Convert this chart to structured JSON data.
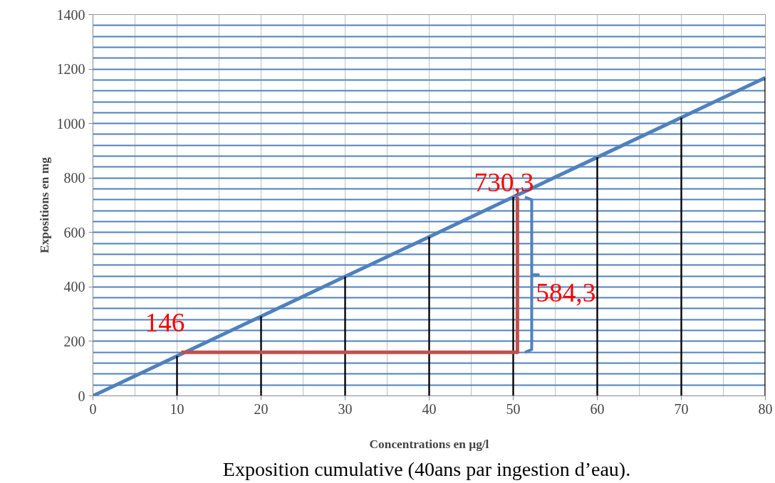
{
  "chart_data": {
    "type": "line",
    "xlabel": "Concentrations en µg/l",
    "ylabel": "Expositions en mg",
    "x": [
      0,
      10,
      20,
      30,
      40,
      50,
      60,
      70,
      80
    ],
    "series": [
      {
        "color": "#4f81bd",
        "values": [
          0,
          146,
          292,
          438,
          584,
          730,
          876,
          1022,
          1168
        ]
      },
      {
        "type": "bar",
        "color": "#000000",
        "x": [
          10,
          20,
          30,
          40,
          50,
          60,
          70,
          80
        ],
        "values": [
          146,
          292,
          438,
          584,
          730,
          876,
          1022,
          1168
        ]
      },
      {
        "type": "line",
        "color": "#c0504d",
        "x": [
          10.5,
          50.5,
          50.5
        ],
        "values": [
          160,
          160,
          730
        ]
      }
    ],
    "annotations": [
      {
        "text": "146",
        "x": 10,
        "y": 146
      },
      {
        "text": "730,3",
        "x": 50,
        "y": 730.3
      },
      "584,3",
      "Exposition  cumulative (40ans par ingestion d’eau)."
    ],
    "xlim": [
      0,
      80
    ],
    "ylim": [
      0,
      1400
    ],
    "xticks": [
      0,
      10,
      20,
      30,
      40,
      50,
      60,
      70,
      80
    ],
    "yticks": [
      0,
      200,
      400,
      600,
      800,
      1000,
      1200,
      1400
    ],
    "grid": true,
    "line_style": "solid"
  }
}
